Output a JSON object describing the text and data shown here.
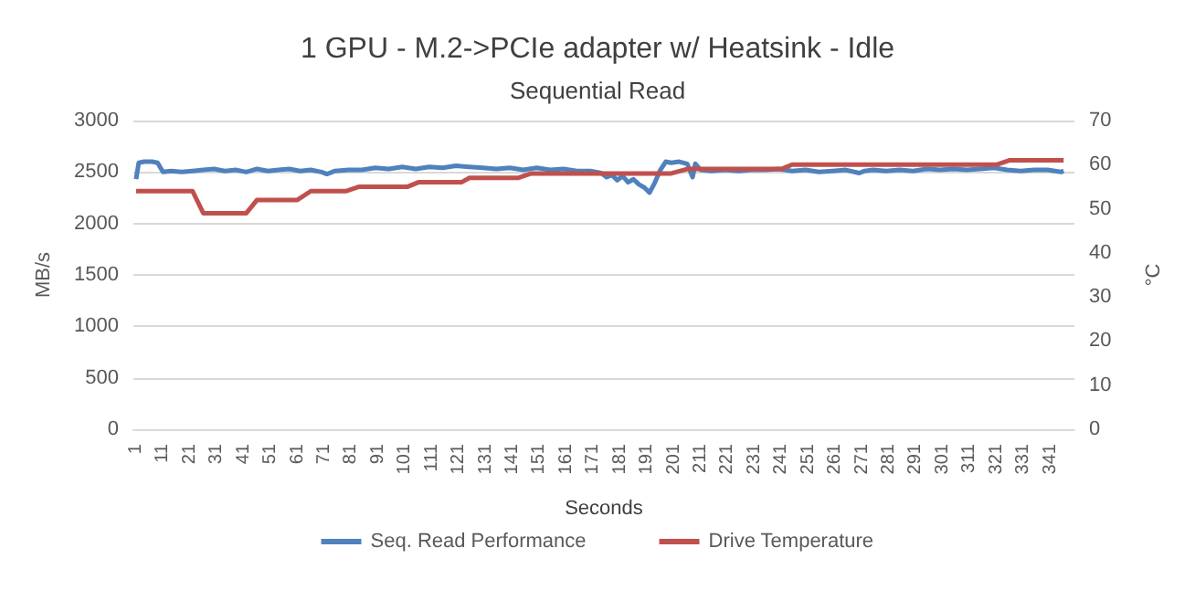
{
  "chart_data": {
    "type": "line",
    "title": "1 GPU - M.2->PCIe adapter w/ Heatsink - Idle",
    "subtitle": "Sequential Read",
    "xlabel": "Seconds",
    "ylabel": "MB/s",
    "y2label": "°C",
    "xlim": [
      0,
      350
    ],
    "xticks": [
      1,
      11,
      21,
      31,
      41,
      51,
      61,
      71,
      81,
      91,
      101,
      111,
      121,
      131,
      141,
      151,
      161,
      171,
      181,
      191,
      201,
      211,
      221,
      231,
      241,
      251,
      261,
      271,
      281,
      291,
      301,
      311,
      321,
      331,
      341
    ],
    "ylim": [
      0,
      3000
    ],
    "yticks": [
      0,
      500,
      1000,
      1500,
      2000,
      2500,
      3000
    ],
    "y2lim": [
      0,
      70
    ],
    "y2ticks": [
      0,
      10,
      20,
      30,
      40,
      50,
      60,
      70
    ],
    "grid": "y",
    "legend": "bottom",
    "marker": "none",
    "line_style": "solid",
    "series": [
      {
        "name": "Seq. Read Performance",
        "color": "#4f81bd",
        "x": [
          1,
          2,
          4,
          7,
          9,
          11,
          14,
          18,
          22,
          26,
          30,
          34,
          38,
          42,
          46,
          50,
          54,
          58,
          62,
          66,
          70,
          72,
          75,
          80,
          85,
          90,
          95,
          100,
          105,
          110,
          115,
          120,
          125,
          130,
          135,
          140,
          145,
          150,
          155,
          160,
          165,
          170,
          174,
          176,
          178,
          180,
          182,
          184,
          186,
          188,
          190,
          192,
          194,
          196,
          198,
          200,
          203,
          206,
          208,
          209,
          211,
          215,
          220,
          225,
          230,
          235,
          240,
          245,
          250,
          255,
          260,
          265,
          270,
          272,
          275,
          280,
          285,
          290,
          295,
          300,
          305,
          310,
          315,
          320,
          325,
          330,
          335,
          340,
          345,
          346
        ],
        "values": [
          2430,
          2590,
          2600,
          2600,
          2590,
          2500,
          2510,
          2500,
          2510,
          2520,
          2530,
          2510,
          2520,
          2500,
          2530,
          2510,
          2520,
          2530,
          2510,
          2520,
          2500,
          2480,
          2510,
          2520,
          2520,
          2540,
          2530,
          2550,
          2530,
          2550,
          2540,
          2560,
          2550,
          2540,
          2530,
          2540,
          2520,
          2540,
          2520,
          2530,
          2510,
          2510,
          2490,
          2450,
          2470,
          2420,
          2460,
          2400,
          2430,
          2380,
          2350,
          2300,
          2400,
          2520,
          2600,
          2590,
          2600,
          2580,
          2450,
          2580,
          2520,
          2510,
          2520,
          2510,
          2520,
          2520,
          2530,
          2510,
          2520,
          2500,
          2510,
          2520,
          2490,
          2510,
          2520,
          2510,
          2520,
          2510,
          2530,
          2520,
          2530,
          2520,
          2530,
          2540,
          2520,
          2510,
          2520,
          2520,
          2500,
          2510
        ]
      },
      {
        "name": "Drive Temperature",
        "color": "#c0504d",
        "axis": "y2",
        "x": [
          1,
          22,
          26,
          42,
          46,
          61,
          66,
          79,
          84,
          102,
          106,
          122,
          125,
          143,
          148,
          200,
          206,
          241,
          245,
          321,
          326,
          346
        ],
        "values": [
          54,
          54,
          49,
          49,
          52,
          52,
          54,
          54,
          55,
          55,
          56,
          56,
          57,
          57,
          58,
          58,
          59,
          59,
          60,
          60,
          61,
          61
        ]
      }
    ]
  }
}
